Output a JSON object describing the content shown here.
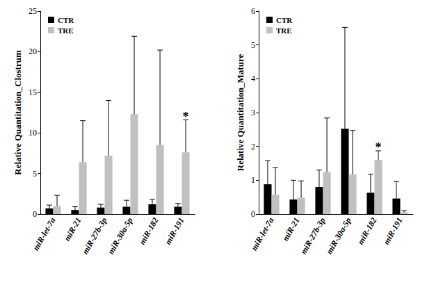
{
  "chart_data": [
    {
      "type": "bar",
      "y_label": "Relative Quantitation_Clostrum",
      "categories": [
        "miR-let-7a",
        "miR-21",
        "miR-27b-3p",
        "miR-30a-5p",
        "miR-182",
        "miR-191"
      ],
      "series": [
        {
          "name": "CTR",
          "color": "#000000",
          "values": [
            0.7,
            0.5,
            0.8,
            0.9,
            1.2,
            0.9
          ],
          "errors": [
            0.4,
            0.4,
            0.4,
            0.8,
            0.6,
            0.4
          ]
        },
        {
          "name": "TRE",
          "color": "#c0c0c0",
          "values": [
            1.0,
            6.4,
            7.2,
            12.3,
            8.5,
            7.6
          ],
          "errors": [
            1.3,
            5.1,
            6.8,
            9.6,
            11.7,
            4.0
          ]
        }
      ],
      "annotations": [
        {
          "text": "*",
          "category": "miR-191",
          "series": "TRE"
        }
      ],
      "ylim": [
        0,
        25
      ],
      "yticks": [
        0,
        5,
        10,
        15,
        20,
        25
      ],
      "grid": false,
      "legend": "upper left"
    },
    {
      "type": "bar",
      "y_label": "Relative Quantitation_Mature",
      "categories": [
        "miR-let-7a",
        "miR-21",
        "miR-27b-3p",
        "miR-30a-5p",
        "miR-182",
        "miR-191"
      ],
      "series": [
        {
          "name": "CTR",
          "color": "#000000",
          "values": [
            0.88,
            0.43,
            0.8,
            2.52,
            0.63,
            0.46
          ],
          "errors": [
            0.7,
            0.57,
            0.5,
            3.0,
            0.55,
            0.5
          ]
        },
        {
          "name": "TRE",
          "color": "#c0c0c0",
          "values": [
            0.57,
            0.48,
            1.24,
            1.17,
            1.6,
            0.05
          ],
          "errors": [
            0.8,
            0.5,
            1.6,
            1.3,
            0.27,
            0.05
          ]
        }
      ],
      "annotations": [
        {
          "text": "*",
          "category": "miR-182",
          "series": "TRE"
        }
      ],
      "ylim": [
        0,
        6
      ],
      "yticks": [
        0,
        1,
        2,
        3,
        4,
        5,
        6
      ],
      "grid": false,
      "legend": "upper left"
    }
  ]
}
